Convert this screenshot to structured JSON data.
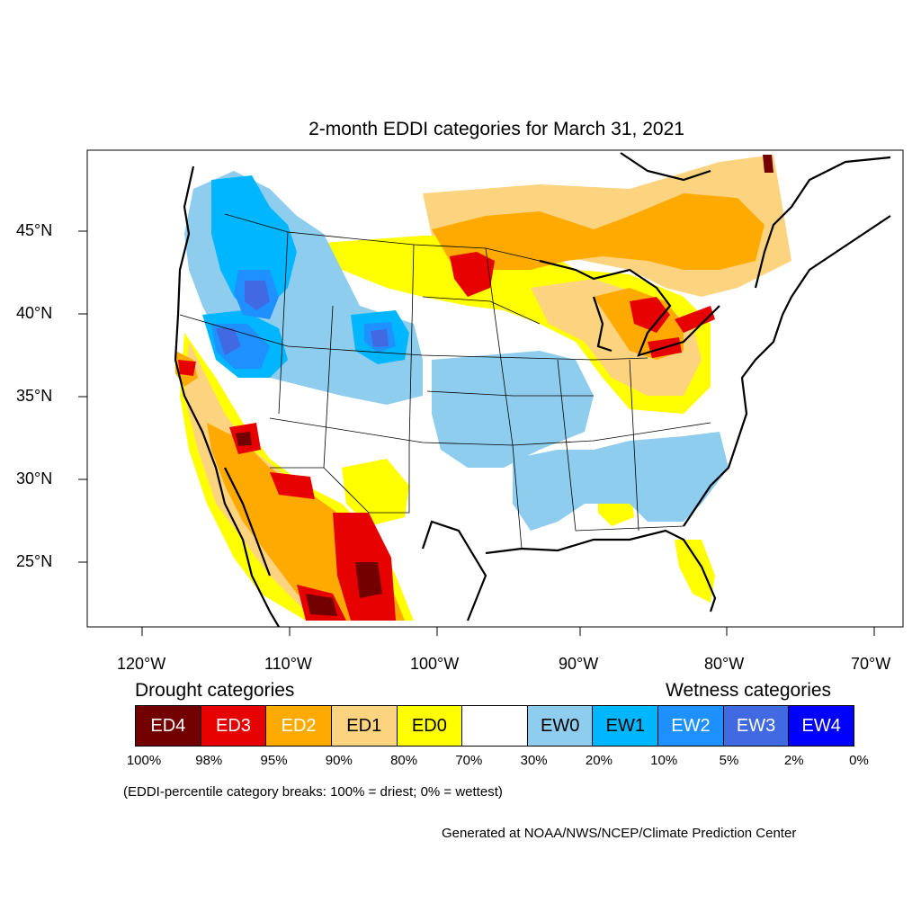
{
  "title": "2-month EDDI categories for March 31, 2021",
  "lat_labels": [
    "45°N",
    "40°N",
    "35°N",
    "30°N",
    "25°N"
  ],
  "lon_labels": [
    "120°W",
    "110°W",
    "100°W",
    "90°W",
    "80°W",
    "70°W"
  ],
  "legend": {
    "drought_heading": "Drought categories",
    "wetness_heading": "Wetness categories",
    "categories": [
      {
        "label": "ED4",
        "color": "#730000",
        "text_color": "#ffffff"
      },
      {
        "label": "ED3",
        "color": "#e60000",
        "text_color": "#ffffff"
      },
      {
        "label": "ED2",
        "color": "#ffaa00",
        "text_color": "#ffffff"
      },
      {
        "label": "ED1",
        "color": "#fcd37f",
        "text_color": "#000000"
      },
      {
        "label": "ED0",
        "color": "#ffff00",
        "text_color": "#000000"
      },
      {
        "label": "",
        "color": "#ffffff",
        "text_color": "#000000"
      },
      {
        "label": "EW0",
        "color": "#8fcdef",
        "text_color": "#000000"
      },
      {
        "label": "EW1",
        "color": "#00b7ff",
        "text_color": "#000000"
      },
      {
        "label": "EW2",
        "color": "#1e90ff",
        "text_color": "#ffffff"
      },
      {
        "label": "EW3",
        "color": "#4169e1",
        "text_color": "#ffffff"
      },
      {
        "label": "EW4",
        "color": "#0000ff",
        "text_color": "#ffffff"
      }
    ],
    "percentiles": [
      "100%",
      "98%",
      "95%",
      "90%",
      "80%",
      "70%",
      "30%",
      "20%",
      "10%",
      "5%",
      "2%",
      "0%"
    ]
  },
  "note": "(EDDI-percentile category breaks: 100% = driest; 0% = wettest)",
  "credit": "Generated at NOAA/NWS/NCEP/Climate Prediction Center"
}
